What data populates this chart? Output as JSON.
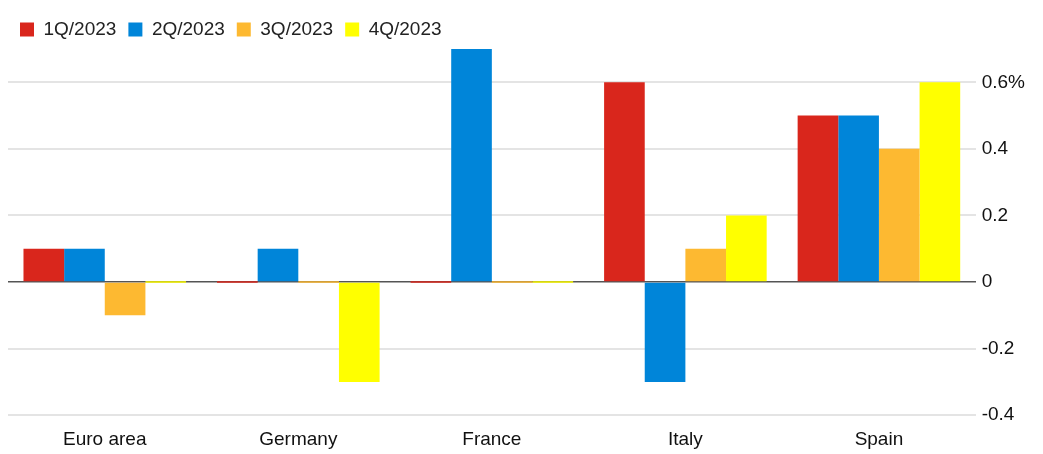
{
  "chart_data": {
    "type": "bar",
    "categories": [
      "Euro area",
      "Germany",
      "France",
      "Italy",
      "Spain"
    ],
    "series": [
      {
        "name": "1Q/2023",
        "color": "#d9261c",
        "values": [
          0.1,
          0,
          0,
          0.6,
          0.5
        ]
      },
      {
        "name": "2Q/2023",
        "color": "#0085d9",
        "values": [
          0.1,
          0.1,
          0.7,
          -0.3,
          0.5
        ]
      },
      {
        "name": "3Q/2023",
        "color": "#fdb931",
        "values": [
          -0.1,
          0,
          0,
          0.1,
          0.4
        ]
      },
      {
        "name": "4Q/2023",
        "color": "#ffff00",
        "values": [
          0,
          -0.3,
          0,
          0.2,
          0.6
        ]
      }
    ],
    "ylim": [
      -0.4,
      0.7
    ],
    "yticks": [
      -0.4,
      -0.2,
      0,
      0.2,
      0.4,
      {
        "value": 0.6,
        "label": "0.6%"
      }
    ],
    "grid": "y",
    "legend": "top left"
  }
}
